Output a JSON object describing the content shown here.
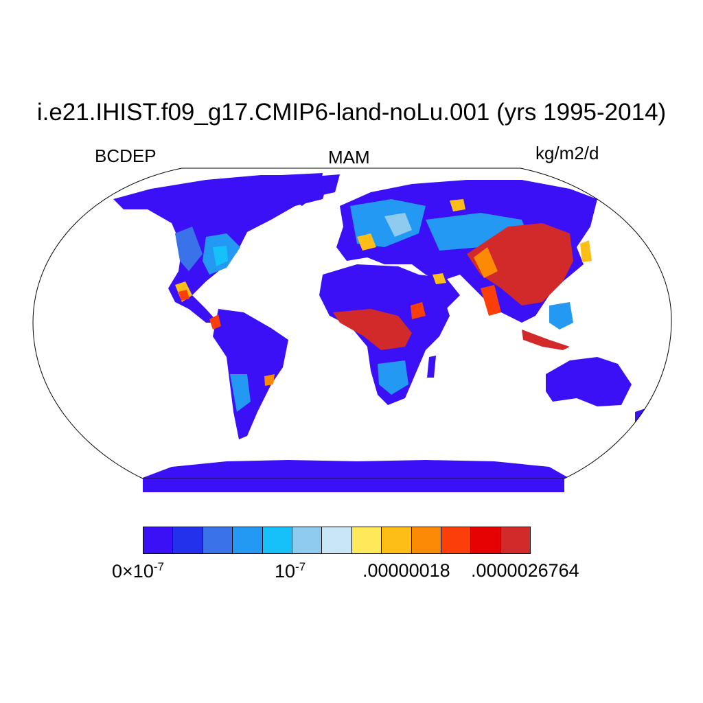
{
  "title": "i.e21.IHIST.f09_g17.CMIP6-land-noLu.001 (yrs 1995-2014)",
  "variable": "BCDEP",
  "season": "MAM",
  "units": "kg/m2/d",
  "colorbar": {
    "colors": [
      "#3b10f7",
      "#2331ec",
      "#3a72e9",
      "#2399f4",
      "#16c0f9",
      "#8fcbee",
      "#c9e6f6",
      "#fde95a",
      "#fdbe17",
      "#fd8a04",
      "#fc3e08",
      "#e60102",
      "#d22a2a"
    ],
    "labels": [
      {
        "mantissa": "0",
        "times": "×10",
        "exponent": "-7"
      },
      {
        "base": "10",
        "exponent": "-7"
      },
      {
        "text": ".00000018"
      },
      {
        "text": ".0000026764"
      }
    ]
  },
  "map": {
    "projection": "Robinson",
    "land_color": "#3b10f7",
    "ocean_color": "#ffffff"
  }
}
